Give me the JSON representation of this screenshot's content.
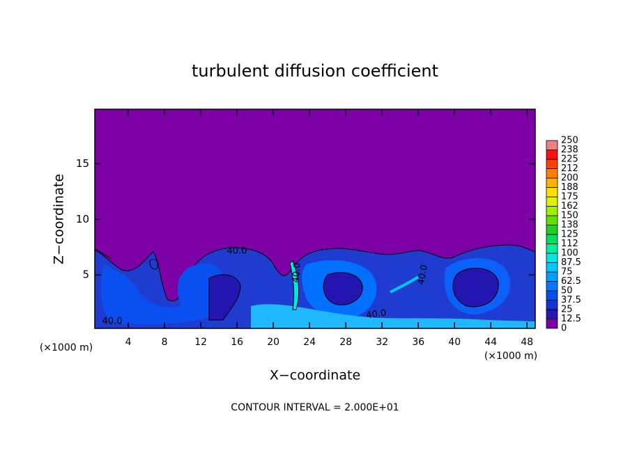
{
  "chart_data": {
    "type": "contour",
    "title": "turbulent diffusion coefficient",
    "xlabel": "X−coordinate",
    "ylabel": "Z−coordinate",
    "x_unit_label": "(×1000 m)",
    "footer": "CONTOUR INTERVAL = 2.000E+01",
    "xlim": [
      0.3,
      48.9
    ],
    "ylim": [
      0.2,
      19.9
    ],
    "xticks": [
      4,
      8,
      12,
      16,
      20,
      24,
      28,
      32,
      36,
      40,
      44,
      48
    ],
    "yticks": [
      5,
      10,
      15
    ],
    "contour_labels": [
      "40.0",
      "40.0",
      "40.0",
      "40.0",
      "40.0"
    ],
    "colorbar": {
      "levels": [
        0,
        12.5,
        25,
        37.5,
        50,
        62.5,
        75,
        87.5,
        100,
        112,
        125,
        138,
        150,
        162,
        175,
        188,
        200,
        212,
        225,
        238,
        250
      ],
      "colors": [
        "#7d00a6",
        "#2a14b4",
        "#1432d8",
        "#0050f0",
        "#0078ff",
        "#00a0ff",
        "#00c8ff",
        "#00e8e0",
        "#00f0a0",
        "#00e060",
        "#20d020",
        "#60e000",
        "#a0f000",
        "#e0f000",
        "#ffe000",
        "#ffb000",
        "#ff8000",
        "#ff4000",
        "#ff1010",
        "#f08080"
      ]
    }
  }
}
